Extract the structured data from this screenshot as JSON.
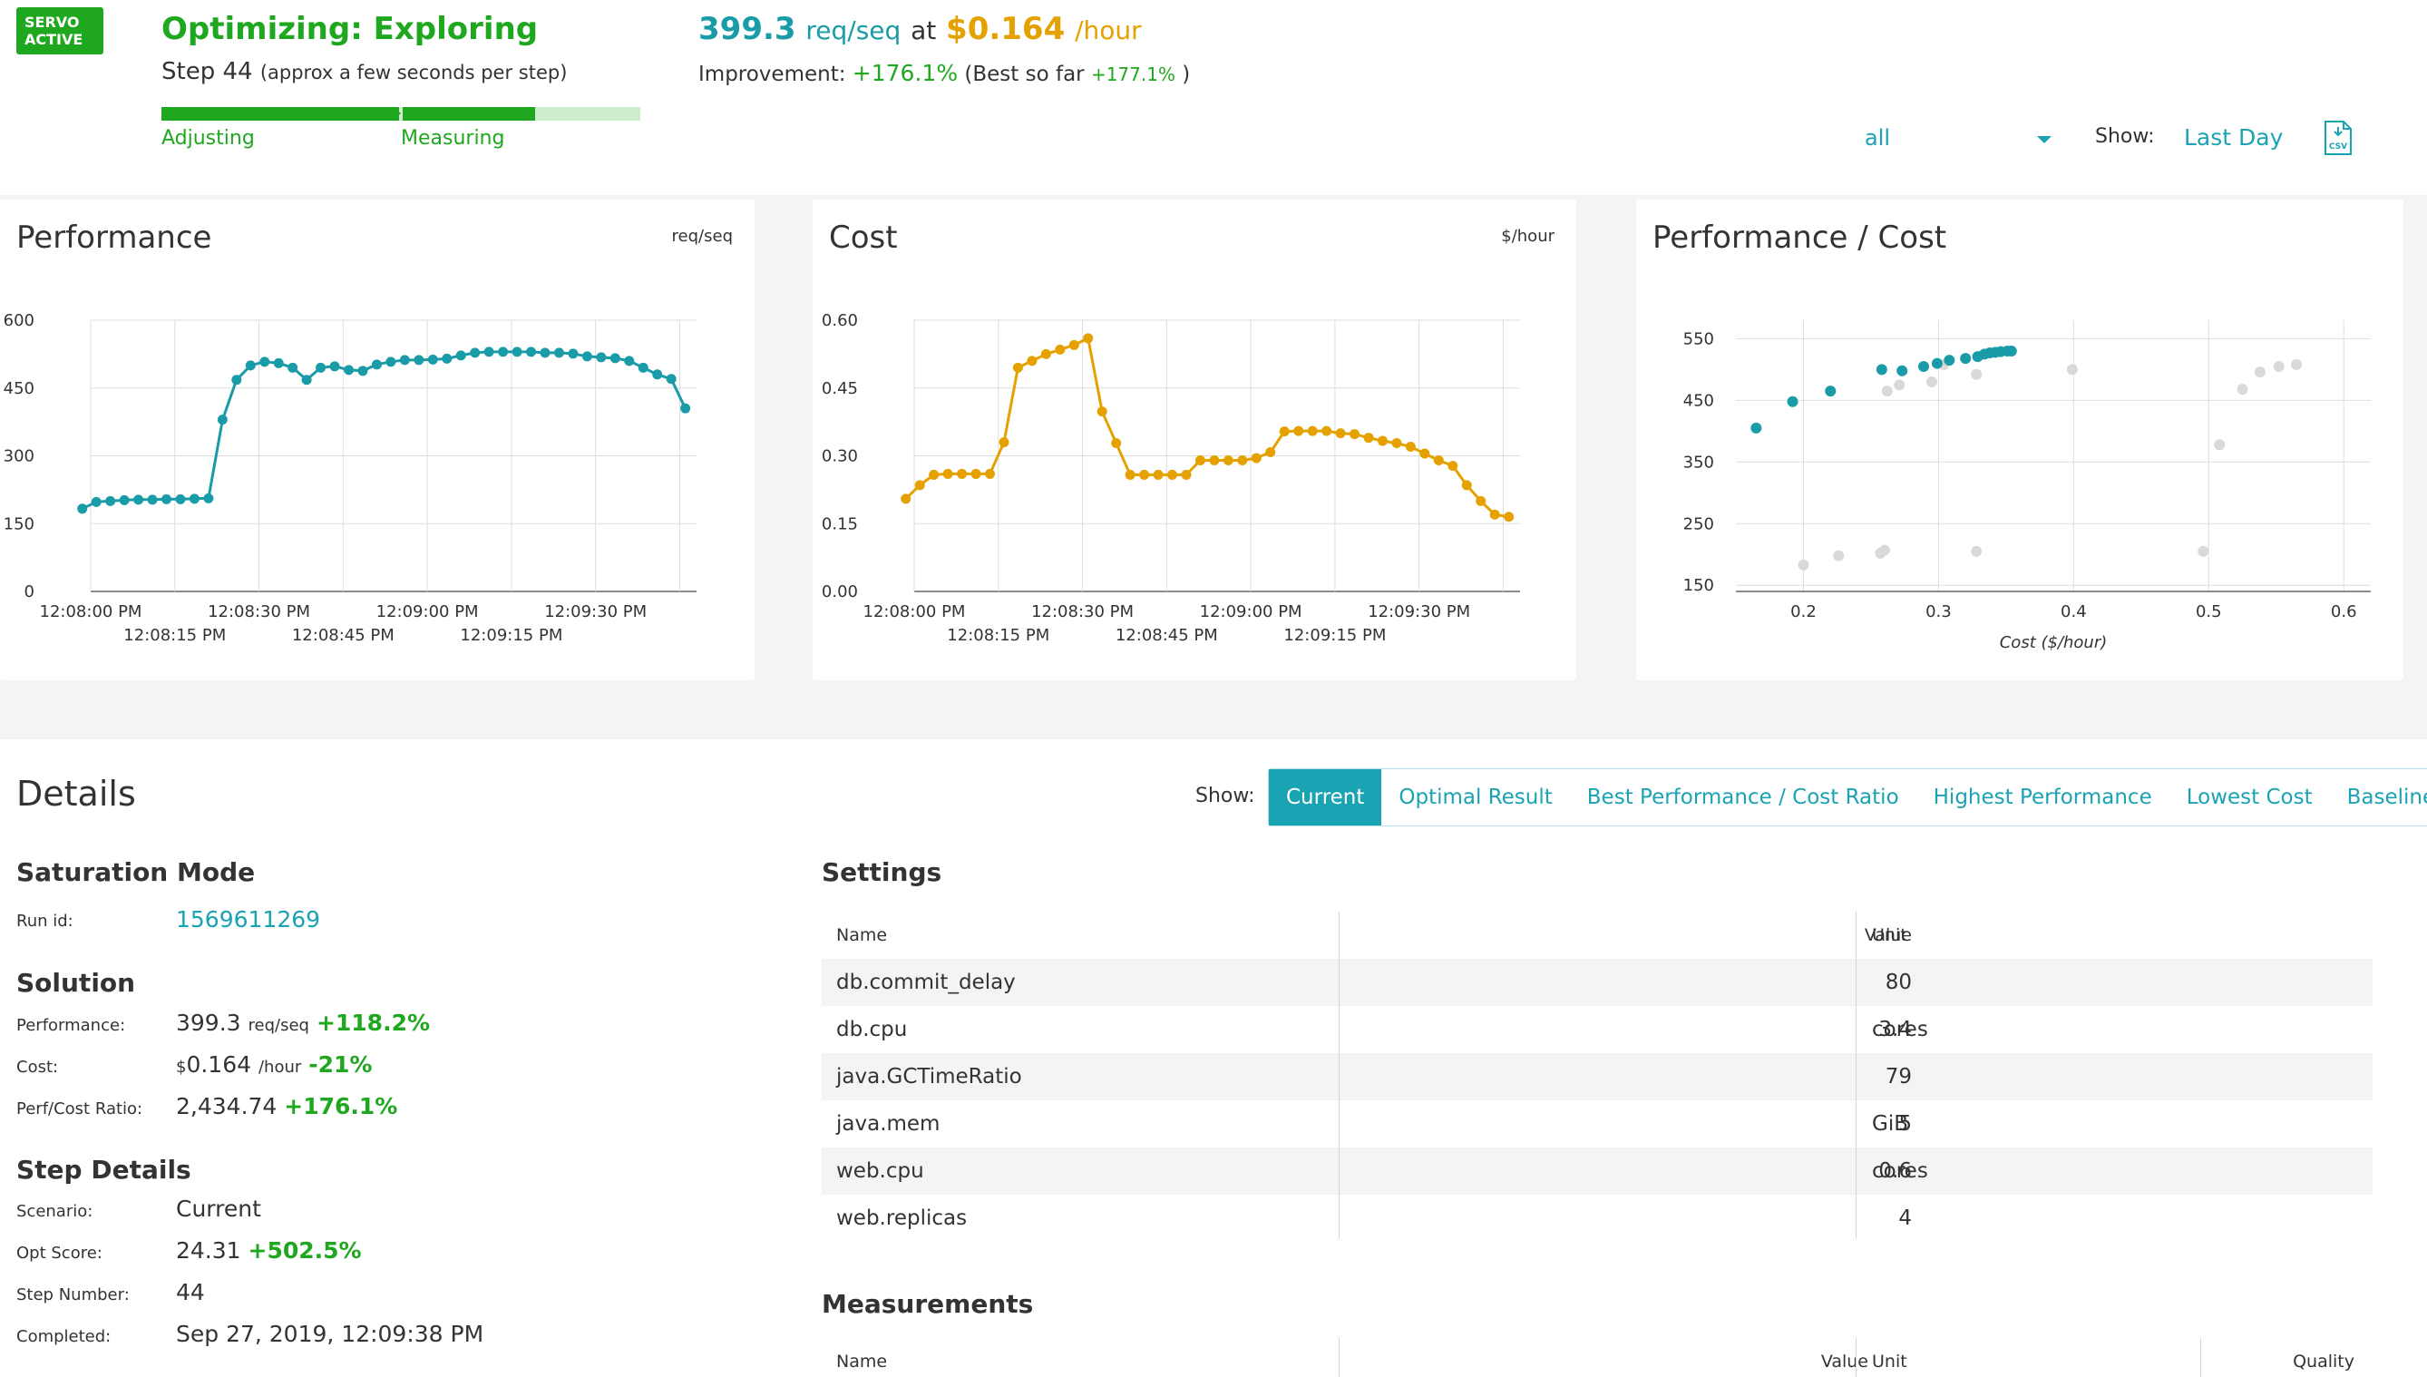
{
  "header": {
    "badge_line1": "SERVO",
    "badge_line2": "ACTIVE",
    "title": "Optimizing: Exploring",
    "step": "Step 44",
    "step_note": "(approx a few seconds per step)",
    "progress_labels": [
      "Adjusting",
      "Measuring"
    ],
    "progress_fraction": 0.78,
    "perf_value": "399.3",
    "perf_unit": "req/seq",
    "at": "at",
    "cost_value": "$0.164",
    "cost_unit": "/hour",
    "improvement_label": "Improvement:",
    "improvement_value": "+176.1%",
    "best_prefix": "(Best so far",
    "best_value": "+177.1%",
    "best_suffix": ")",
    "filter_value": "all",
    "show_label": "Show:",
    "show_value": "Last Day",
    "csv_icon": "csv-download-icon"
  },
  "colors": {
    "green": "#1fa81f",
    "teal": "#1a9ba8",
    "gold": "#e5a100",
    "link": "#1aa3b3"
  },
  "cards": {
    "performance": {
      "title": "Performance",
      "unit": "req/seq"
    },
    "cost": {
      "title": "Cost",
      "unit": "$/hour"
    },
    "ratio": {
      "title": "Performance / Cost"
    }
  },
  "chart_data": [
    {
      "type": "line",
      "title": "Performance",
      "ylabel": "req/seq",
      "ylim": [
        0,
        600
      ],
      "yticks": [
        0,
        150,
        300,
        450,
        600
      ],
      "xticks_top": [
        "12:08:00 PM",
        "12:08:30 PM",
        "12:09:00 PM",
        "12:09:30 PM"
      ],
      "xticks_bottom": [
        "12:08:15 PM",
        "12:08:45 PM",
        "12:09:15 PM"
      ],
      "x_seconds_range": [
        0,
        108
      ],
      "grid": true,
      "color": "#1a9ba8",
      "x": [
        -1.5,
        1,
        3.5,
        6,
        8.5,
        11,
        13.5,
        16,
        18.5,
        21,
        23.5,
        26,
        28.5,
        31,
        33.5,
        36,
        38.5,
        41,
        43.5,
        46,
        48.5,
        51,
        53.5,
        56,
        58.5,
        61,
        63.5,
        66,
        68.5,
        71,
        73.5,
        76,
        78.5,
        81,
        83.5,
        86,
        88.5,
        91,
        93.5,
        96,
        98.5,
        101,
        103.5,
        106
      ],
      "values": [
        183,
        198,
        200,
        202,
        203,
        203,
        204,
        204,
        205,
        206,
        380,
        468,
        500,
        508,
        505,
        495,
        468,
        495,
        498,
        490,
        488,
        502,
        508,
        512,
        512,
        513,
        515,
        522,
        528,
        530,
        530,
        530,
        530,
        528,
        528,
        526,
        520,
        518,
        516,
        510,
        495,
        480,
        470,
        405
      ]
    },
    {
      "type": "line",
      "title": "Cost",
      "ylabel": "$/hour",
      "ylim": [
        0,
        0.6
      ],
      "yticks": [
        "0.00",
        "0.15",
        "0.30",
        "0.45",
        "0.60"
      ],
      "xticks_top": [
        "12:08:00 PM",
        "12:08:30 PM",
        "12:09:00 PM",
        "12:09:30 PM"
      ],
      "xticks_bottom": [
        "12:08:15 PM",
        "12:08:45 PM",
        "12:09:15 PM"
      ],
      "x_seconds_range": [
        0,
        108
      ],
      "grid": true,
      "color": "#e5a100",
      "x": [
        -1.5,
        1,
        3.5,
        6,
        8.5,
        11,
        13.5,
        16,
        18.5,
        21,
        23.5,
        26,
        28.5,
        31,
        33.5,
        36,
        38.5,
        41,
        43.5,
        46,
        48.5,
        51,
        53.5,
        56,
        58.5,
        61,
        63.5,
        66,
        68.5,
        71,
        73.5,
        76,
        78.5,
        81,
        83.5,
        86,
        88.5,
        91,
        93.5,
        96,
        98.5,
        101,
        103.5,
        106
      ],
      "values": [
        0.205,
        0.235,
        0.258,
        0.26,
        0.26,
        0.26,
        0.26,
        0.33,
        0.495,
        0.51,
        0.525,
        0.535,
        0.545,
        0.56,
        0.398,
        0.328,
        0.258,
        0.258,
        0.258,
        0.258,
        0.258,
        0.29,
        0.29,
        0.29,
        0.29,
        0.295,
        0.308,
        0.354,
        0.355,
        0.355,
        0.355,
        0.35,
        0.348,
        0.34,
        0.333,
        0.328,
        0.32,
        0.305,
        0.29,
        0.278,
        0.235,
        0.2,
        0.17,
        0.165
      ]
    },
    {
      "type": "scatter",
      "title": "Performance / Cost",
      "xlabel": "Cost ($/hour)",
      "xlim": [
        0.15,
        0.62
      ],
      "ylim": [
        140,
        580
      ],
      "xticks": [
        "0.2",
        "0.3",
        "0.4",
        "0.5",
        "0.6"
      ],
      "yticks": [
        "150",
        "250",
        "350",
        "450",
        "550"
      ],
      "grid": true,
      "series": [
        {
          "color": "#1a9ba8",
          "x": [
            0.165,
            0.192,
            0.22,
            0.258,
            0.273,
            0.289,
            0.299,
            0.308,
            0.32,
            0.329,
            0.334,
            0.338,
            0.342,
            0.346,
            0.351,
            0.354
          ],
          "y": [
            405,
            448,
            465,
            500,
            498,
            505,
            510,
            515,
            518,
            521,
            525,
            527,
            528,
            529,
            530,
            530
          ]
        },
        {
          "color": "#d9d9d9",
          "x": [
            0.2,
            0.226,
            0.257,
            0.26,
            0.262,
            0.271,
            0.295,
            0.304,
            0.328,
            0.328,
            0.399,
            0.496,
            0.508,
            0.525,
            0.538,
            0.552,
            0.565
          ],
          "y": [
            183,
            198,
            202,
            207,
            465,
            475,
            480,
            508,
            205,
            492,
            500,
            205,
            378,
            468,
            496,
            505,
            508
          ]
        }
      ]
    }
  ],
  "details": {
    "title": "Details",
    "show_label": "Show:",
    "tabs": [
      "Current",
      "Optimal Result",
      "Best Performance / Cost Ratio",
      "Highest Performance",
      "Lowest Cost",
      "Baseline"
    ],
    "active_tab": "Current",
    "saturation_title": "Saturation Mode",
    "run_id_label": "Run id:",
    "run_id": "1569611269",
    "solution_title": "Solution",
    "performance_label": "Performance:",
    "performance_value": "399.3",
    "performance_unit": "req/seq",
    "performance_change": "+118.2%",
    "cost_label": "Cost:",
    "cost_currency": "$",
    "cost_value": "0.164",
    "cost_unit": "/hour",
    "cost_change": "-21%",
    "ratio_label": "Perf/Cost Ratio:",
    "ratio_value": "2,434.74",
    "ratio_change": "+176.1%",
    "step_details_title": "Step Details",
    "scenario_label": "Scenario:",
    "scenario_value": "Current",
    "opt_score_label": "Opt Score:",
    "opt_score_value": "24.31",
    "opt_score_change": "+502.5%",
    "step_number_label": "Step Number:",
    "step_number_value": "44",
    "completed_label": "Completed:",
    "completed_value": "Sep 27, 2019, 12:09:38 PM",
    "settings_title": "Settings",
    "settings_headers": {
      "name": "Name",
      "value": "Value",
      "unit": "Unit"
    },
    "settings_rows": [
      {
        "name": "db.commit_delay",
        "value": "80",
        "unit": ""
      },
      {
        "name": "db.cpu",
        "value": "3.4",
        "unit": "cores"
      },
      {
        "name": "java.GCTimeRatio",
        "value": "79",
        "unit": ""
      },
      {
        "name": "java.mem",
        "value": "5",
        "unit": "GiB"
      },
      {
        "name": "web.cpu",
        "value": "0.6",
        "unit": "cores"
      },
      {
        "name": "web.replicas",
        "value": "4",
        "unit": ""
      }
    ],
    "measurements_title": "Measurements",
    "measurements_headers": {
      "name": "Name",
      "value": "Value",
      "unit": "Unit",
      "quality": "Quality"
    }
  }
}
